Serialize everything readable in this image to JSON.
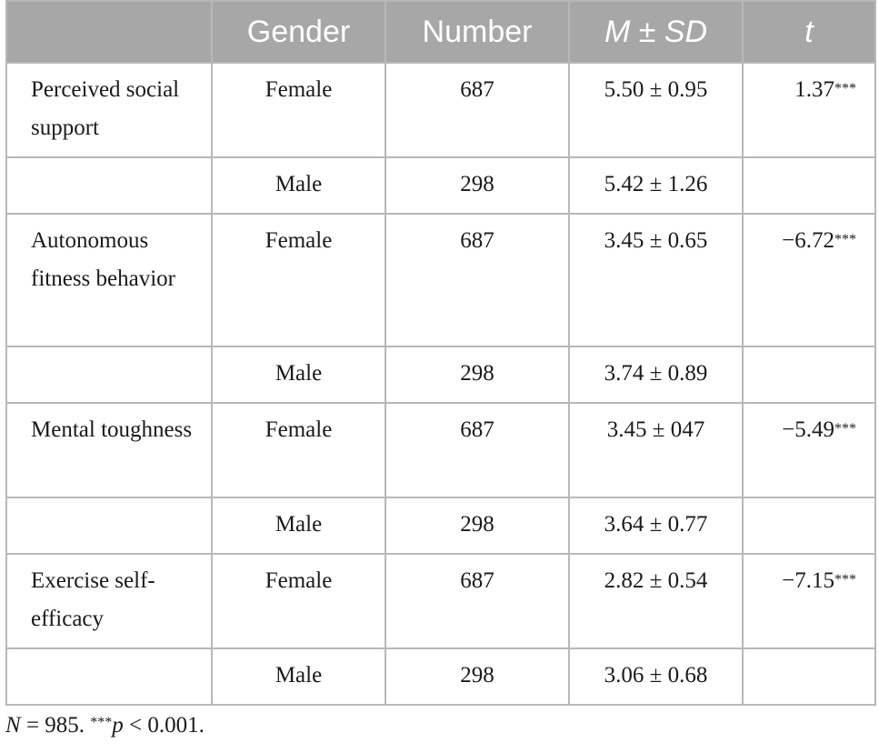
{
  "table": {
    "headers": {
      "variable": "",
      "gender": "Gender",
      "number": "Number",
      "msd": "M ± SD",
      "t": "t"
    },
    "rows": [
      {
        "variable": "Perceived social support",
        "gender": "Female",
        "number": "687",
        "msd": "5.50 ± 0.95",
        "t": "1.37",
        "t_sup": "***"
      },
      {
        "variable": "",
        "gender": "Male",
        "number": "298",
        "msd": "5.42 ± 1.26",
        "t": "",
        "t_sup": ""
      },
      {
        "variable": "Autonomous fitness behavior",
        "gender": "Female",
        "number": "687",
        "msd": "3.45 ± 0.65",
        "t": "−6.72",
        "t_sup": "***"
      },
      {
        "variable": "",
        "gender": "Male",
        "number": "298",
        "msd": "3.74 ± 0.89",
        "t": "",
        "t_sup": ""
      },
      {
        "variable": "Mental toughness",
        "gender": "Female",
        "number": "687",
        "msd": "3.45 ± 047",
        "t": "−5.49",
        "t_sup": "***"
      },
      {
        "variable": "",
        "gender": "Male",
        "number": "298",
        "msd": "3.64 ± 0.77",
        "t": "",
        "t_sup": ""
      },
      {
        "variable": "Exercise self-efficacy",
        "gender": "Female",
        "number": "687",
        "msd": "2.82 ± 0.54",
        "t": "−7.15",
        "t_sup": "***"
      },
      {
        "variable": "",
        "gender": "Male",
        "number": "298",
        "msd": "3.06 ± 0.68",
        "t": "",
        "t_sup": ""
      }
    ]
  },
  "note": {
    "n_symbol": "N",
    "n_text": " = 985. ",
    "sig_sup": "***",
    "p_symbol": "p",
    "p_text": " < 0.001."
  },
  "colors": {
    "header_bg": "#a7a7a7",
    "header_text": "#ffffff",
    "border": "#b8b8b8"
  }
}
